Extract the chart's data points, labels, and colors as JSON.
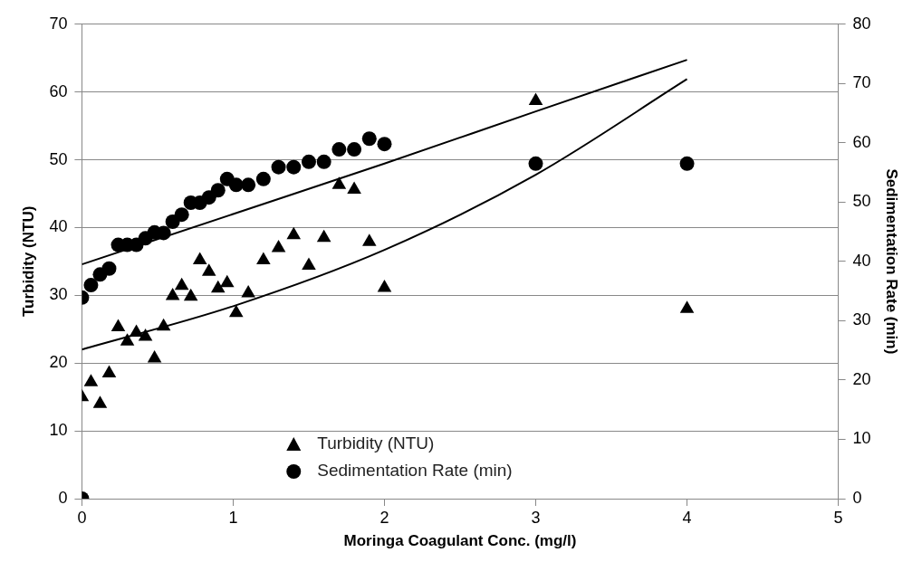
{
  "chart_data": {
    "type": "scatter",
    "xlabel": "Moringa Coagulant Conc. (mg/l)",
    "ylabel": "Turbidity (NTU)",
    "y2label": "Sedimentation Rate (min)",
    "xlim": [
      0,
      5
    ],
    "xticks": [
      0,
      1,
      2,
      3,
      4,
      5
    ],
    "ylim": [
      0,
      70
    ],
    "yticks": [
      0,
      10,
      20,
      30,
      40,
      50,
      60,
      70
    ],
    "y2lim": [
      0,
      80
    ],
    "y2ticks": [
      0,
      10,
      20,
      30,
      40,
      50,
      60,
      70,
      80
    ],
    "grid": "y",
    "legend": "bottom",
    "series": [
      {
        "name": "Turbidity (NTU)",
        "marker": "triangle",
        "color": "#000000",
        "x": [
          0,
          0.06,
          0.12,
          0.18,
          0.24,
          0.3,
          0.36,
          0.42,
          0.48,
          0.54,
          0.6,
          0.66,
          0.72,
          0.78,
          0.84,
          0.9,
          0.96,
          1.02,
          1.1,
          1.2,
          1.3,
          1.4,
          1.5,
          1.6,
          1.7,
          1.8,
          1.9,
          2,
          3,
          4
        ],
        "values": [
          15.0,
          17.2,
          14.0,
          18.5,
          25.3,
          23.2,
          24.5,
          23.9,
          20.7,
          25.4,
          29.9,
          31.4,
          29.8,
          35.2,
          33.5,
          31.0,
          31.8,
          27.4,
          30.3,
          35.2,
          37.0,
          38.9,
          34.4,
          38.5,
          46.3,
          45.6,
          37.9,
          31.1,
          58.7,
          28.0
        ]
      },
      {
        "name": "Sedimentation Rate (min)",
        "marker": "circle",
        "color": "#000000",
        "axis": "y2",
        "x": [
          0,
          0,
          0.06,
          0.12,
          0.18,
          0.24,
          0.3,
          0.36,
          0.42,
          0.48,
          0.54,
          0.6,
          0.66,
          0.72,
          0.78,
          0.84,
          0.9,
          0.96,
          1.02,
          1.1,
          1.2,
          1.3,
          1.4,
          1.5,
          1.6,
          1.7,
          1.8,
          1.9,
          2,
          3,
          4
        ],
        "values": [
          0,
          33.9,
          36.0,
          37.8,
          38.8,
          42.8,
          42.8,
          42.8,
          43.9,
          44.9,
          44.8,
          46.7,
          47.9,
          49.9,
          49.9,
          50.8,
          52.0,
          53.9,
          52.9,
          52.9,
          53.9,
          55.9,
          55.9,
          56.8,
          56.8,
          58.9,
          58.9,
          60.7,
          59.8,
          56.5,
          56.5
        ]
      },
      {
        "type": "line",
        "marker": "none",
        "color": "#000000",
        "x": [
          0,
          1,
          2,
          3,
          4
        ],
        "values": [
          22.0,
          28.4,
          36.7,
          47.8,
          61.9
        ]
      },
      {
        "type": "line",
        "marker": "none",
        "color": "#000000",
        "axis": "y2",
        "x": [
          0,
          1,
          2,
          3,
          4
        ],
        "values": [
          39.5,
          48.0,
          56.5,
          65.3,
          74.0
        ]
      }
    ]
  }
}
